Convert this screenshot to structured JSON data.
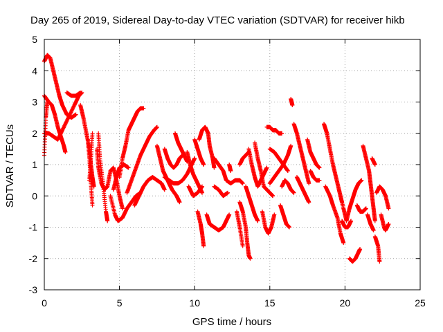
{
  "chart_data": {
    "type": "scatter",
    "title": "Day 265 of 2019, Sidereal Day-to-day VTEC variation (SDTVAR) for receiver hikb",
    "xlabel": "GPS time / hours",
    "ylabel": "SDTVAR / TECUs",
    "xlim": [
      0,
      25
    ],
    "ylim": [
      -3,
      5
    ],
    "xticks": [
      0,
      5,
      10,
      15,
      20,
      25
    ],
    "yticks": [
      -3,
      -2,
      -1,
      0,
      1,
      2,
      3,
      4,
      5
    ],
    "grid": true,
    "marker": "+",
    "color": "#ff0000",
    "tracks": [
      [
        [
          0.0,
          4.3
        ],
        [
          0.2,
          4.5
        ],
        [
          0.4,
          4.4
        ],
        [
          0.6,
          4.0
        ],
        [
          0.8,
          3.6
        ],
        [
          1.0,
          3.2
        ],
        [
          1.2,
          2.9
        ],
        [
          1.5,
          2.6
        ],
        [
          1.8,
          2.5
        ],
        [
          2.1,
          2.6
        ]
      ],
      [
        [
          0.0,
          3.2
        ],
        [
          0.3,
          3.0
        ],
        [
          0.5,
          2.9
        ],
        [
          0.7,
          2.6
        ],
        [
          0.9,
          2.2
        ],
        [
          1.1,
          1.9
        ],
        [
          1.3,
          1.6
        ],
        [
          1.4,
          1.4
        ]
      ],
      [
        [
          0.0,
          2.0
        ],
        [
          0.3,
          2.0
        ],
        [
          0.6,
          1.9
        ],
        [
          0.9,
          1.8
        ],
        [
          1.2,
          2.1
        ],
        [
          1.6,
          2.5
        ],
        [
          2.0,
          2.9
        ],
        [
          2.3,
          3.2
        ],
        [
          2.5,
          3.3
        ]
      ],
      [
        [
          0.0,
          1.3
        ],
        [
          0.1,
          2.5
        ],
        [
          0.2,
          3.0
        ]
      ],
      [
        [
          1.5,
          3.3
        ],
        [
          1.8,
          3.2
        ],
        [
          2.1,
          3.2
        ],
        [
          2.4,
          3.3
        ]
      ],
      [
        [
          2.4,
          2.9
        ],
        [
          2.6,
          2.5
        ],
        [
          2.8,
          2.0
        ],
        [
          3.0,
          1.5
        ],
        [
          3.1,
          1.0
        ],
        [
          3.2,
          0.6
        ],
        [
          3.3,
          0.3
        ]
      ],
      [
        [
          2.9,
          1.8
        ],
        [
          3.0,
          1.2
        ],
        [
          3.1,
          0.4
        ],
        [
          3.2,
          -0.3
        ]
      ],
      [
        [
          3.2,
          2.0
        ],
        [
          3.1,
          1.2
        ],
        [
          3.0,
          0.5
        ]
      ],
      [
        [
          3.5,
          1.5
        ],
        [
          3.6,
          0.9
        ],
        [
          3.8,
          0.4
        ],
        [
          4.0,
          0.2
        ],
        [
          4.2,
          0.3
        ],
        [
          4.4,
          0.8
        ],
        [
          4.6,
          0.9
        ],
        [
          4.8,
          0.5
        ],
        [
          5.0,
          0.0
        ],
        [
          5.2,
          -0.4
        ]
      ],
      [
        [
          3.6,
          2.0
        ],
        [
          3.7,
          1.2
        ],
        [
          3.9,
          0.4
        ],
        [
          4.1,
          -0.5
        ],
        [
          4.2,
          -0.8
        ]
      ],
      [
        [
          4.4,
          0.0
        ],
        [
          4.7,
          -0.6
        ],
        [
          4.9,
          -0.8
        ],
        [
          5.2,
          -0.7
        ],
        [
          5.5,
          -0.4
        ],
        [
          5.8,
          -0.2
        ],
        [
          6.1,
          0.0
        ],
        [
          6.4,
          0.1
        ]
      ],
      [
        [
          5.0,
          0.6
        ],
        [
          5.2,
          1.2
        ],
        [
          5.4,
          1.6
        ],
        [
          5.6,
          2.1
        ],
        [
          5.8,
          2.3
        ],
        [
          6.0,
          2.5
        ],
        [
          6.2,
          2.7
        ],
        [
          6.4,
          2.8
        ],
        [
          6.6,
          2.8
        ]
      ],
      [
        [
          4.6,
          0.2
        ],
        [
          4.8,
          0.6
        ],
        [
          5.0,
          0.9
        ],
        [
          5.3,
          1.0
        ],
        [
          5.6,
          0.9
        ]
      ],
      [
        [
          5.5,
          0.1
        ],
        [
          5.8,
          0.5
        ],
        [
          6.1,
          0.9
        ],
        [
          6.4,
          1.3
        ],
        [
          6.7,
          1.6
        ],
        [
          7.0,
          1.9
        ],
        [
          7.3,
          2.1
        ],
        [
          7.5,
          2.2
        ]
      ],
      [
        [
          6.0,
          -0.3
        ],
        [
          6.3,
          0.0
        ],
        [
          6.6,
          0.3
        ],
        [
          6.9,
          0.5
        ],
        [
          7.2,
          0.6
        ],
        [
          7.5,
          0.5
        ],
        [
          7.8,
          0.4
        ],
        [
          8.0,
          0.2
        ]
      ],
      [
        [
          7.5,
          1.6
        ],
        [
          7.7,
          1.2
        ],
        [
          7.9,
          0.8
        ],
        [
          8.1,
          0.6
        ],
        [
          8.3,
          0.4
        ],
        [
          8.5,
          0.2
        ],
        [
          8.8,
          0.0
        ],
        [
          9.0,
          -0.2
        ]
      ],
      [
        [
          8.0,
          1.5
        ],
        [
          8.2,
          1.2
        ],
        [
          8.4,
          1.0
        ],
        [
          8.6,
          0.9
        ],
        [
          8.8,
          1.0
        ],
        [
          9.0,
          1.2
        ],
        [
          9.2,
          1.3
        ]
      ],
      [
        [
          8.0,
          0.6
        ],
        [
          8.3,
          0.5
        ],
        [
          8.6,
          0.4
        ],
        [
          8.9,
          0.4
        ],
        [
          9.2,
          0.5
        ],
        [
          9.5,
          0.7
        ],
        [
          9.8,
          1.0
        ],
        [
          10.0,
          1.2
        ]
      ],
      [
        [
          8.7,
          2.0
        ],
        [
          8.9,
          1.7
        ],
        [
          9.1,
          1.5
        ],
        [
          9.3,
          1.3
        ],
        [
          9.5,
          1.1
        ]
      ],
      [
        [
          9.5,
          1.4
        ],
        [
          9.7,
          1.0
        ],
        [
          9.9,
          0.7
        ],
        [
          10.1,
          0.5
        ],
        [
          10.3,
          0.3
        ],
        [
          10.5,
          0.1
        ]
      ],
      [
        [
          9.6,
          0.3
        ],
        [
          9.9,
          0.0
        ],
        [
          10.2,
          0.1
        ],
        [
          10.5,
          0.3
        ]
      ],
      [
        [
          10.0,
          1.8
        ],
        [
          10.2,
          1.5
        ],
        [
          10.4,
          1.2
        ],
        [
          10.6,
          1.0
        ]
      ],
      [
        [
          10.3,
          1.8
        ],
        [
          10.5,
          2.1
        ],
        [
          10.7,
          2.2
        ],
        [
          10.9,
          2.0
        ],
        [
          11.0,
          1.6
        ],
        [
          11.2,
          1.2
        ],
        [
          11.3,
          0.9
        ]
      ],
      [
        [
          10.2,
          -0.5
        ],
        [
          10.4,
          -0.9
        ],
        [
          10.5,
          -1.2
        ],
        [
          10.6,
          -1.6
        ]
      ],
      [
        [
          10.8,
          -0.6
        ],
        [
          11.0,
          -0.9
        ],
        [
          11.3,
          -1.0
        ],
        [
          11.6,
          -1.1
        ],
        [
          11.9,
          -1.0
        ],
        [
          12.1,
          -0.8
        ],
        [
          12.3,
          -0.6
        ]
      ],
      [
        [
          11.3,
          1.2
        ],
        [
          11.6,
          1.0
        ],
        [
          11.9,
          0.8
        ],
        [
          12.1,
          0.5
        ],
        [
          12.4,
          0.4
        ],
        [
          12.7,
          0.5
        ],
        [
          13.0,
          0.5
        ],
        [
          13.2,
          0.4
        ]
      ],
      [
        [
          11.3,
          0.3
        ],
        [
          11.6,
          0.2
        ],
        [
          11.9,
          0.0
        ],
        [
          12.2,
          0.1
        ]
      ],
      [
        [
          12.3,
          1.0
        ],
        [
          12.4,
          0.8
        ]
      ],
      [
        [
          13.0,
          1.0
        ],
        [
          13.2,
          1.2
        ],
        [
          13.4,
          1.3
        ],
        [
          13.6,
          1.4
        ]
      ],
      [
        [
          13.0,
          -0.2
        ],
        [
          13.2,
          -0.5
        ],
        [
          13.4,
          -1.0
        ],
        [
          13.5,
          -1.5
        ],
        [
          13.6,
          -1.9
        ],
        [
          13.7,
          -2.0
        ]
      ],
      [
        [
          12.8,
          -0.5
        ],
        [
          13.0,
          -1.0
        ],
        [
          13.2,
          -1.6
        ]
      ],
      [
        [
          13.4,
          0.3
        ],
        [
          13.6,
          0.0
        ],
        [
          13.8,
          -0.3
        ],
        [
          14.0,
          -0.6
        ],
        [
          14.2,
          -0.8
        ]
      ],
      [
        [
          13.6,
          1.5
        ],
        [
          13.8,
          1.0
        ],
        [
          14.0,
          0.6
        ],
        [
          14.2,
          0.3
        ],
        [
          14.4,
          0.5
        ],
        [
          14.6,
          0.7
        ],
        [
          14.8,
          0.9
        ]
      ],
      [
        [
          14.0,
          1.7
        ],
        [
          14.2,
          1.2
        ],
        [
          14.4,
          0.8
        ],
        [
          14.6,
          0.3
        ],
        [
          14.8,
          0.2
        ],
        [
          15.0,
          0.1
        ],
        [
          15.2,
          0.0
        ]
      ],
      [
        [
          14.5,
          -0.5
        ],
        [
          14.7,
          -1.0
        ],
        [
          14.9,
          -1.2
        ],
        [
          15.1,
          -1.0
        ],
        [
          15.3,
          -0.6
        ]
      ],
      [
        [
          14.8,
          2.2
        ],
        [
          15.0,
          2.2
        ],
        [
          15.2,
          2.1
        ],
        [
          15.4,
          2.1
        ],
        [
          15.6,
          2.0
        ],
        [
          15.8,
          2.0
        ]
      ],
      [
        [
          15.0,
          1.5
        ],
        [
          15.3,
          1.4
        ],
        [
          15.6,
          1.2
        ],
        [
          15.9,
          1.0
        ],
        [
          16.2,
          0.8
        ]
      ],
      [
        [
          15.0,
          0.4
        ],
        [
          15.3,
          0.6
        ],
        [
          15.6,
          0.8
        ],
        [
          15.9,
          1.0
        ],
        [
          16.2,
          1.3
        ],
        [
          16.4,
          1.6
        ]
      ],
      [
        [
          15.7,
          -0.3
        ],
        [
          15.9,
          -0.6
        ],
        [
          16.1,
          -0.9
        ],
        [
          16.3,
          -1.0
        ]
      ],
      [
        [
          15.8,
          0.3
        ],
        [
          16.0,
          0.5
        ],
        [
          16.2,
          0.4
        ],
        [
          16.4,
          0.2
        ],
        [
          16.6,
          0.1
        ]
      ],
      [
        [
          16.4,
          3.1
        ],
        [
          16.5,
          2.9
        ]
      ],
      [
        [
          16.6,
          2.3
        ],
        [
          16.8,
          2.0
        ],
        [
          17.0,
          1.6
        ],
        [
          17.2,
          1.2
        ],
        [
          17.4,
          0.8
        ],
        [
          17.6,
          0.4
        ]
      ],
      [
        [
          16.8,
          0.6
        ],
        [
          17.0,
          0.4
        ],
        [
          17.2,
          0.2
        ],
        [
          17.4,
          0.0
        ],
        [
          17.6,
          -0.2
        ]
      ],
      [
        [
          17.5,
          1.8
        ],
        [
          17.7,
          1.4
        ],
        [
          17.9,
          1.2
        ],
        [
          18.1,
          1.0
        ],
        [
          18.3,
          0.9
        ]
      ],
      [
        [
          17.7,
          0.8
        ],
        [
          17.9,
          0.6
        ],
        [
          18.1,
          0.5
        ],
        [
          18.3,
          0.5
        ]
      ],
      [
        [
          18.6,
          2.3
        ],
        [
          18.8,
          2.0
        ],
        [
          19.0,
          1.5
        ],
        [
          19.2,
          1.0
        ],
        [
          19.4,
          0.6
        ],
        [
          19.6,
          0.2
        ],
        [
          19.8,
          -0.2
        ]
      ],
      [
        [
          18.7,
          0.3
        ],
        [
          19.0,
          0.0
        ],
        [
          19.2,
          -0.3
        ],
        [
          19.5,
          -0.7
        ],
        [
          19.7,
          -1.2
        ],
        [
          19.9,
          -1.5
        ]
      ],
      [
        [
          19.6,
          0.2
        ],
        [
          19.9,
          -0.4
        ],
        [
          20.1,
          -0.8
        ],
        [
          20.3,
          -0.4
        ],
        [
          20.5,
          -0.1
        ],
        [
          20.7,
          0.2
        ],
        [
          20.9,
          0.4
        ],
        [
          21.1,
          0.5
        ]
      ],
      [
        [
          19.8,
          -0.8
        ],
        [
          20.0,
          -1.0
        ],
        [
          20.2,
          -1.0
        ],
        [
          20.4,
          -0.8
        ]
      ],
      [
        [
          20.3,
          -2.0
        ],
        [
          20.5,
          -2.1
        ],
        [
          20.7,
          -2.0
        ],
        [
          20.9,
          -1.8
        ],
        [
          21.0,
          -1.7
        ]
      ],
      [
        [
          20.8,
          -0.3
        ],
        [
          21.0,
          -0.5
        ],
        [
          21.2,
          -0.5
        ],
        [
          21.4,
          -0.4
        ]
      ],
      [
        [
          21.2,
          1.6
        ],
        [
          21.4,
          1.2
        ],
        [
          21.6,
          0.8
        ],
        [
          21.7,
          0.4
        ],
        [
          21.8,
          0.0
        ],
        [
          21.9,
          -0.4
        ],
        [
          22.0,
          -0.8
        ]
      ],
      [
        [
          21.5,
          -0.6
        ],
        [
          21.7,
          -0.9
        ],
        [
          21.9,
          -1.1
        ]
      ],
      [
        [
          21.8,
          1.2
        ],
        [
          22.0,
          1.0
        ]
      ],
      [
        [
          22.1,
          0.1
        ],
        [
          22.3,
          0.3
        ],
        [
          22.5,
          0.2
        ],
        [
          22.7,
          0.0
        ],
        [
          22.9,
          -0.4
        ]
      ],
      [
        [
          22.0,
          -1.3
        ],
        [
          22.2,
          -1.6
        ],
        [
          22.3,
          -2.1
        ]
      ],
      [
        [
          22.4,
          -0.6
        ],
        [
          22.6,
          -1.0
        ],
        [
          22.7,
          -1.1
        ],
        [
          22.9,
          -0.9
        ]
      ]
    ]
  }
}
